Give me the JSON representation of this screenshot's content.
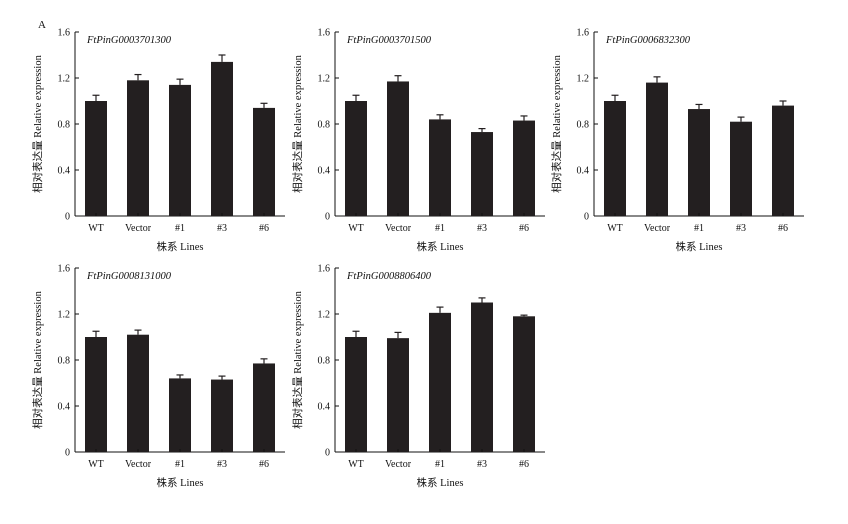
{
  "figure": {
    "panel_letter": "A",
    "colors": {
      "bar": "#231f20",
      "axis": "#111111",
      "background": "#ffffff"
    }
  },
  "chart_data": [
    {
      "type": "bar",
      "title": "FtPinG0003701300",
      "categories": [
        "WT",
        "Vector",
        "#1",
        "#3",
        "#6"
      ],
      "values": [
        1.0,
        1.18,
        1.14,
        1.34,
        0.94
      ],
      "errors": [
        0.05,
        0.05,
        0.05,
        0.06,
        0.04
      ],
      "xlabel": "株系 Lines",
      "ylabel": "相对表达量 Relative expression",
      "ylim": [
        0,
        1.6
      ],
      "yticks": [
        "0",
        "0.4",
        "0.8",
        "1.2",
        "1.6"
      ]
    },
    {
      "type": "bar",
      "title": "FtPinG0003701500",
      "categories": [
        "WT",
        "Vector",
        "#1",
        "#3",
        "#6"
      ],
      "values": [
        1.0,
        1.17,
        0.84,
        0.73,
        0.83
      ],
      "errors": [
        0.05,
        0.05,
        0.04,
        0.03,
        0.04
      ],
      "xlabel": "株系 Lines",
      "ylabel": "相对表达量 Relative expression",
      "ylim": [
        0,
        1.6
      ],
      "yticks": [
        "0",
        "0.4",
        "0.8",
        "1.2",
        "1.6"
      ]
    },
    {
      "type": "bar",
      "title": "FtPinG0006832300",
      "categories": [
        "WT",
        "Vector",
        "#1",
        "#3",
        "#6"
      ],
      "values": [
        1.0,
        1.16,
        0.93,
        0.82,
        0.96
      ],
      "errors": [
        0.05,
        0.05,
        0.04,
        0.04,
        0.04
      ],
      "xlabel": "株系 Lines",
      "ylabel": "相对表达量 Relative expression",
      "ylim": [
        0,
        1.6
      ],
      "yticks": [
        "0",
        "0.4",
        "0.8",
        "1.2",
        "1.6"
      ]
    },
    {
      "type": "bar",
      "title": "FtPinG0008131000",
      "categories": [
        "WT",
        "Vector",
        "#1",
        "#3",
        "#6"
      ],
      "values": [
        1.0,
        1.02,
        0.64,
        0.63,
        0.77
      ],
      "errors": [
        0.05,
        0.04,
        0.03,
        0.03,
        0.04
      ],
      "xlabel": "株系 Lines",
      "ylabel": "相对表达量 Relative expression",
      "ylim": [
        0,
        1.6
      ],
      "yticks": [
        "0",
        "0.4",
        "0.8",
        "1.2",
        "1.6"
      ]
    },
    {
      "type": "bar",
      "title": "FtPinG0008806400",
      "categories": [
        "WT",
        "Vector",
        "#1",
        "#3",
        "#6"
      ],
      "values": [
        1.0,
        0.99,
        1.21,
        1.3,
        1.18
      ],
      "errors": [
        0.05,
        0.05,
        0.05,
        0.04,
        0.01
      ],
      "xlabel": "株系 Lines",
      "ylabel": "相对表达量 Relative expression",
      "ylim": [
        0,
        1.6
      ],
      "yticks": [
        "0",
        "0.4",
        "0.8",
        "1.2",
        "1.6"
      ]
    }
  ]
}
